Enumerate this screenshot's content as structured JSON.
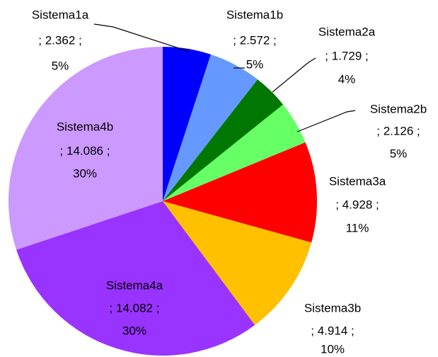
{
  "chart_data": {
    "type": "pie",
    "categories": [
      "Sistema1a",
      "Sistema1b",
      "Sistema2a",
      "Sistema2b",
      "Sistema3a",
      "Sistema3b",
      "Sistema4a",
      "Sistema4b"
    ],
    "values": [
      2.362,
      2.572,
      1.729,
      2.126,
      4.928,
      4.914,
      14.082,
      14.086
    ],
    "value_labels": [
      "; 2.362 ;",
      "; 2.572 ;",
      "; 1.729 ;",
      "; 2.126 ;",
      "; 4.928 ;",
      "; 4.914 ;",
      "; 14.082 ;",
      "; 14.086 ;"
    ],
    "percent_labels": [
      "5%",
      "5%",
      "4%",
      "5%",
      "11%",
      "10%",
      "30%",
      "30%"
    ],
    "colors": [
      "#0000ff",
      "#6699ff",
      "#007700",
      "#66ff66",
      "#ff0000",
      "#ffc000",
      "#9933ff",
      "#cc99ff"
    ]
  }
}
